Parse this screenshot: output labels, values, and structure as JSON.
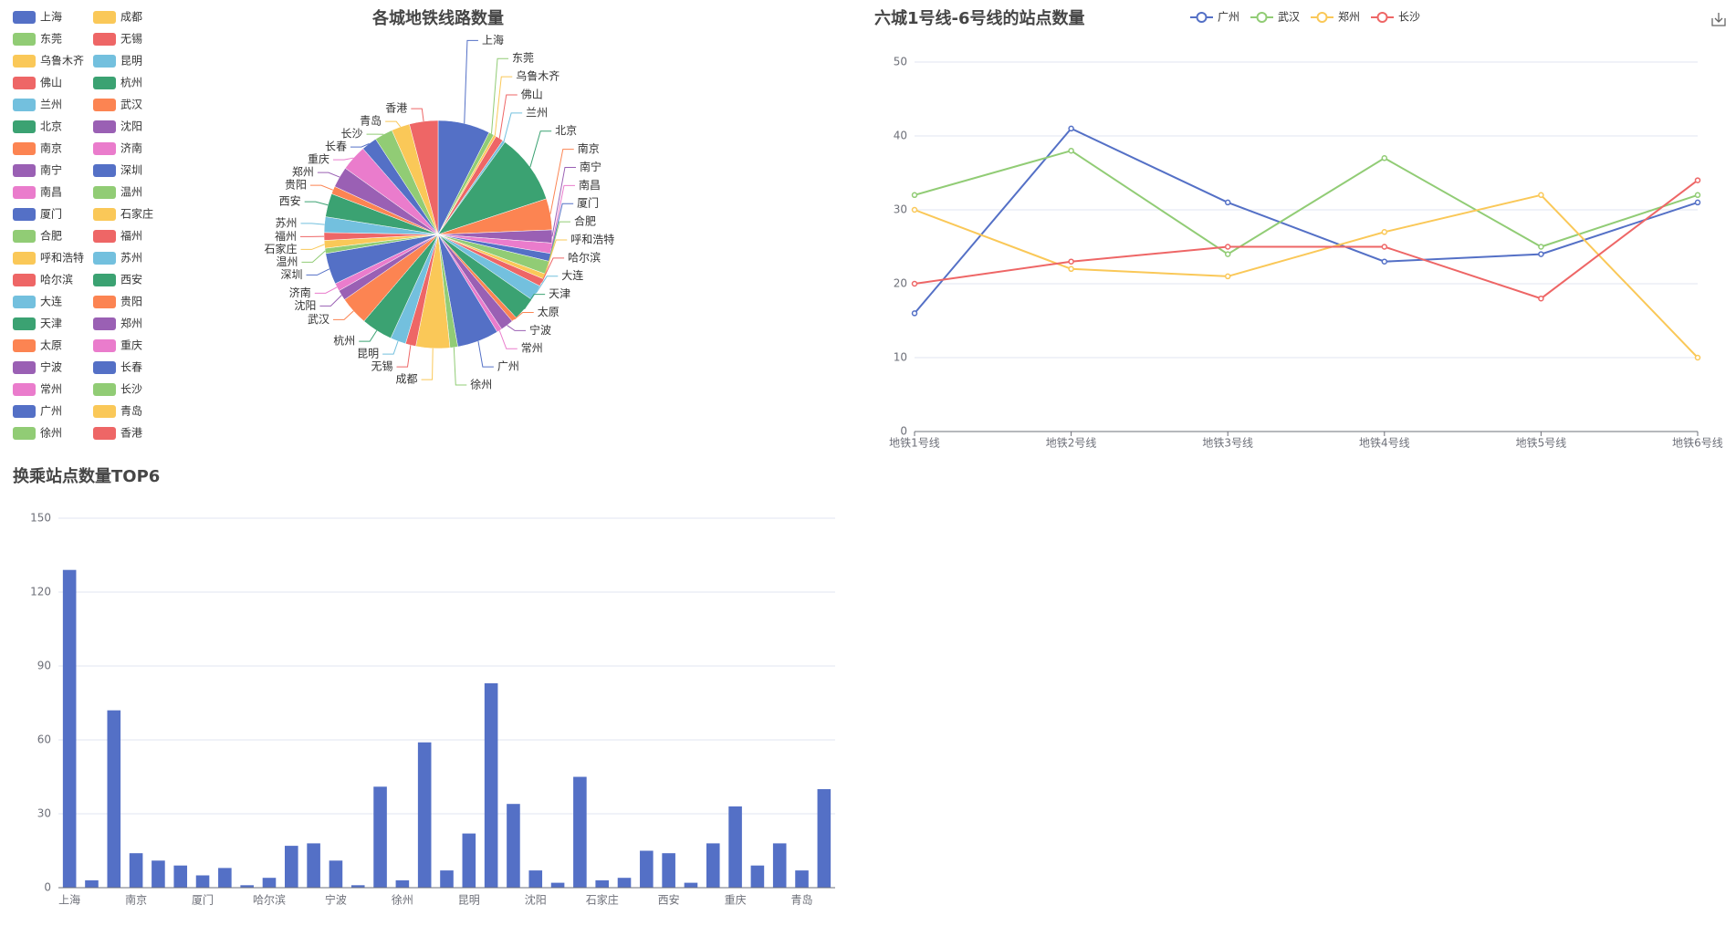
{
  "chart_data": [
    {
      "type": "pie",
      "title": "各城地铁线路数量",
      "categories": [
        "上海",
        "东莞",
        "乌鲁木齐",
        "佛山",
        "兰州",
        "北京",
        "南京",
        "南宁",
        "南昌",
        "厦门",
        "合肥",
        "呼和浩特",
        "哈尔滨",
        "大连",
        "天津",
        "太原",
        "宁波",
        "常州",
        "广州",
        "徐州",
        "成都",
        "无锡",
        "昆明",
        "杭州",
        "武汉",
        "沈阳",
        "济南",
        "深圳",
        "温州",
        "石家庄",
        "福州",
        "苏州",
        "西安",
        "贵阳",
        "郑州",
        "重庆",
        "长春",
        "长沙",
        "青岛",
        "香港"
      ],
      "values": [
        20,
        2,
        1,
        3,
        1,
        27,
        12,
        5,
        4,
        3,
        5,
        2,
        3,
        6,
        9,
        2,
        5,
        2,
        16,
        3,
        13,
        4,
        6,
        12,
        11,
        4,
        3,
        12,
        2,
        3,
        3,
        6,
        9,
        3,
        8,
        10,
        6,
        7,
        7,
        11
      ],
      "palette": [
        "#5470c6",
        "#91cc75",
        "#fac858",
        "#ee6666",
        "#73c0de",
        "#3ba272",
        "#fc8452",
        "#9a60b4",
        "#ea7ccc"
      ]
    },
    {
      "type": "line",
      "title": "六城1号线-6号线的站点数量",
      "categories": [
        "地铁1号线",
        "地铁2号线",
        "地铁3号线",
        "地铁4号线",
        "地铁5号线",
        "地铁6号线"
      ],
      "series": [
        {
          "name": "广州",
          "color": "#5470c6",
          "values": [
            16,
            41,
            31,
            23,
            24,
            31
          ]
        },
        {
          "name": "武汉",
          "color": "#91cc75",
          "values": [
            32,
            38,
            24,
            37,
            25,
            32
          ]
        },
        {
          "name": "郑州",
          "color": "#fac858",
          "values": [
            30,
            22,
            21,
            27,
            32,
            10
          ]
        },
        {
          "name": "长沙",
          "color": "#ee6666",
          "values": [
            20,
            23,
            25,
            25,
            18,
            34
          ]
        }
      ],
      "ylim": [
        0,
        50
      ],
      "yticks": [
        0,
        10,
        20,
        30,
        40,
        50
      ],
      "grid": true
    },
    {
      "type": "bar",
      "title": "换乘站点数量TOP6",
      "categories": [
        "上海",
        null,
        null,
        "南京",
        null,
        null,
        "厦门",
        null,
        null,
        "哈尔滨",
        null,
        null,
        "宁波",
        null,
        null,
        "徐州",
        null,
        null,
        "昆明",
        null,
        null,
        "沈阳",
        null,
        null,
        "石家庄",
        null,
        null,
        "西安",
        null,
        null,
        "重庆",
        null,
        null,
        "青岛",
        null
      ],
      "values": [
        129,
        3,
        72,
        14,
        11,
        9,
        5,
        8,
        1,
        4,
        17,
        18,
        11,
        1,
        41,
        3,
        59,
        7,
        22,
        83,
        34,
        7,
        2,
        45,
        3,
        4,
        15,
        14,
        2,
        18,
        33,
        9,
        18,
        7,
        40
      ],
      "color": "#5470c6",
      "ylim": [
        0,
        150
      ],
      "yticks": [
        0,
        30,
        60,
        90,
        120,
        150
      ],
      "grid": true
    }
  ]
}
